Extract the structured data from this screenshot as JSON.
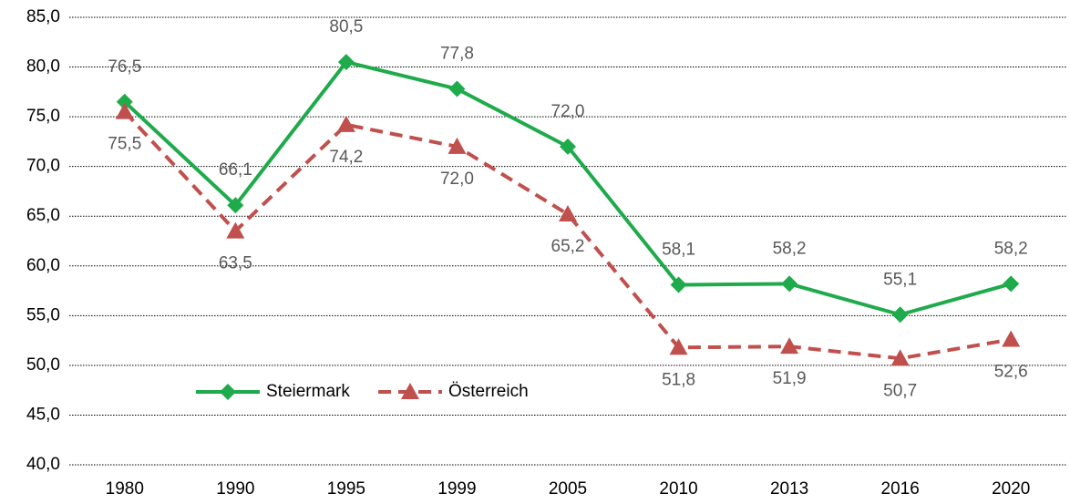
{
  "chart_data": {
    "type": "line",
    "categories": [
      "1980",
      "1990",
      "1995",
      "1999",
      "2005",
      "2010",
      "2013",
      "2016",
      "2020"
    ],
    "series": [
      {
        "name": "Steiermark",
        "color": "#1faa4b",
        "marker": "diamond",
        "dash": "solid",
        "values": [
          76.5,
          66.1,
          80.5,
          77.8,
          72.0,
          58.1,
          58.2,
          55.1,
          58.2
        ],
        "value_labels": [
          "76,5",
          "66,1",
          "80,5",
          "77,8",
          "72,0",
          "58,1",
          "58,2",
          "55,1",
          "58,2"
        ]
      },
      {
        "name": "Österreich",
        "color": "#c0504d",
        "marker": "triangle",
        "dash": "dashed",
        "values": [
          75.5,
          63.5,
          74.2,
          72.0,
          65.2,
          51.8,
          51.9,
          50.7,
          52.6
        ],
        "value_labels": [
          "75,5",
          "63,5",
          "74,2",
          "72,0",
          "65,2",
          "51,8",
          "51,9",
          "50,7",
          "52,6"
        ]
      }
    ],
    "ylim": [
      40,
      85
    ],
    "yticks": [
      {
        "value": 40,
        "label": "40,0"
      },
      {
        "value": 45,
        "label": "45,0"
      },
      {
        "value": 50,
        "label": "50,0"
      },
      {
        "value": 55,
        "label": "55,0"
      },
      {
        "value": 60,
        "label": "60,0"
      },
      {
        "value": 65,
        "label": "65,0"
      },
      {
        "value": 70,
        "label": "70,0"
      },
      {
        "value": 75,
        "label": "75,0"
      },
      {
        "value": 80,
        "label": "80,0"
      },
      {
        "value": 85,
        "label": "85,0"
      }
    ],
    "grid": true,
    "legend": "lower left"
  }
}
